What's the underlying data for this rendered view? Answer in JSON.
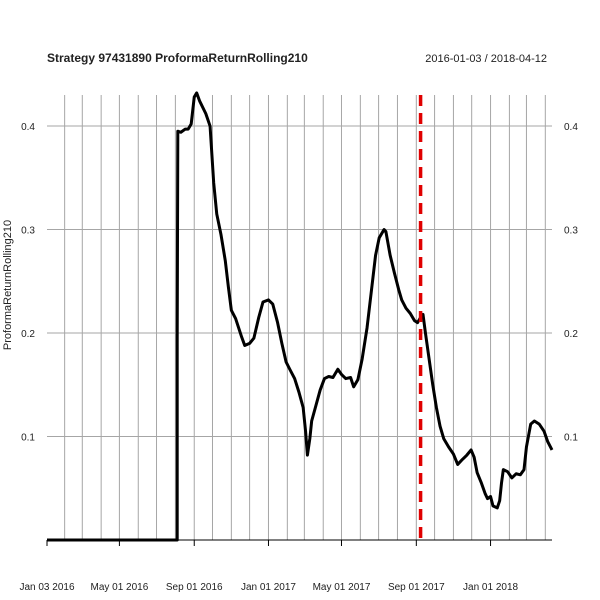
{
  "chart_data": {
    "type": "line",
    "title": "Strategy 97431890 ProformaReturnRolling210",
    "date_range": "2016-01-03 / 2018-04-12",
    "ylabel": "ProformaReturnRolling210",
    "xlabel": "",
    "x_range": [
      "2016-01-03",
      "2018-04-12"
    ],
    "ylim": [
      0.0,
      0.43
    ],
    "y_ticks": [
      0.1,
      0.2,
      0.3,
      0.4
    ],
    "y_tick_labels": [
      "0.1",
      "0.2",
      "0.3",
      "0.4"
    ],
    "x_tick_labels": [
      {
        "label": "Jan 03 2016",
        "date": "2016-01-03"
      },
      {
        "label": "May 01 2016",
        "date": "2016-05-01"
      },
      {
        "label": "Sep 01 2016",
        "date": "2016-09-01"
      },
      {
        "label": "Jan 01 2017",
        "date": "2017-01-01"
      },
      {
        "label": "May 01 2017",
        "date": "2017-05-01"
      },
      {
        "label": "Sep 01 2017",
        "date": "2017-09-01"
      },
      {
        "label": "Jan 01 2018",
        "date": "2018-01-01"
      }
    ],
    "grid": true,
    "line_color": "#000000",
    "marker_line": {
      "date": "2017-09-08",
      "color": "#e00000",
      "style": "dashed"
    },
    "series": [
      {
        "points": [
          [
            "2016-01-03",
            0.0
          ],
          [
            "2016-08-04",
            0.0
          ],
          [
            "2016-08-04",
            0.195
          ],
          [
            "2016-08-05",
            0.395
          ],
          [
            "2016-08-10",
            0.394
          ],
          [
            "2016-08-17",
            0.397
          ],
          [
            "2016-08-22",
            0.397
          ],
          [
            "2016-08-27",
            0.402
          ],
          [
            "2016-09-01",
            0.428
          ],
          [
            "2016-09-05",
            0.432
          ],
          [
            "2016-09-10",
            0.424
          ],
          [
            "2016-09-20",
            0.412
          ],
          [
            "2016-09-27",
            0.4
          ],
          [
            "2016-10-03",
            0.345
          ],
          [
            "2016-10-08",
            0.315
          ],
          [
            "2016-10-15",
            0.295
          ],
          [
            "2016-10-22",
            0.27
          ],
          [
            "2016-10-27",
            0.245
          ],
          [
            "2016-11-01",
            0.222
          ],
          [
            "2016-11-08",
            0.214
          ],
          [
            "2016-11-18",
            0.196
          ],
          [
            "2016-11-23",
            0.188
          ],
          [
            "2016-12-01",
            0.19
          ],
          [
            "2016-12-08",
            0.195
          ],
          [
            "2016-12-16",
            0.215
          ],
          [
            "2016-12-23",
            0.23
          ],
          [
            "2017-01-01",
            0.232
          ],
          [
            "2017-01-08",
            0.228
          ],
          [
            "2017-01-16",
            0.21
          ],
          [
            "2017-01-23",
            0.19
          ],
          [
            "2017-01-30",
            0.172
          ],
          [
            "2017-02-05",
            0.165
          ],
          [
            "2017-02-13",
            0.156
          ],
          [
            "2017-02-20",
            0.143
          ],
          [
            "2017-02-27",
            0.128
          ],
          [
            "2017-03-03",
            0.105
          ],
          [
            "2017-03-06",
            0.082
          ],
          [
            "2017-03-10",
            0.098
          ],
          [
            "2017-03-13",
            0.115
          ],
          [
            "2017-03-20",
            0.13
          ],
          [
            "2017-03-27",
            0.145
          ],
          [
            "2017-04-03",
            0.156
          ],
          [
            "2017-04-10",
            0.158
          ],
          [
            "2017-04-17",
            0.157
          ],
          [
            "2017-04-25",
            0.165
          ],
          [
            "2017-05-01",
            0.16
          ],
          [
            "2017-05-08",
            0.156
          ],
          [
            "2017-05-16",
            0.157
          ],
          [
            "2017-05-21",
            0.148
          ],
          [
            "2017-05-28",
            0.155
          ],
          [
            "2017-06-04",
            0.175
          ],
          [
            "2017-06-12",
            0.205
          ],
          [
            "2017-06-19",
            0.24
          ],
          [
            "2017-06-26",
            0.275
          ],
          [
            "2017-07-02",
            0.292
          ],
          [
            "2017-07-10",
            0.3
          ],
          [
            "2017-07-13",
            0.298
          ],
          [
            "2017-07-20",
            0.275
          ],
          [
            "2017-07-27",
            0.258
          ],
          [
            "2017-08-03",
            0.242
          ],
          [
            "2017-08-08",
            0.232
          ],
          [
            "2017-08-15",
            0.224
          ],
          [
            "2017-08-22",
            0.219
          ],
          [
            "2017-08-29",
            0.212
          ],
          [
            "2017-09-03",
            0.21
          ],
          [
            "2017-09-08",
            0.215
          ],
          [
            "2017-09-12",
            0.218
          ],
          [
            "2017-09-16",
            0.2
          ],
          [
            "2017-09-22",
            0.175
          ],
          [
            "2017-09-28",
            0.15
          ],
          [
            "2017-10-04",
            0.128
          ],
          [
            "2017-10-10",
            0.11
          ],
          [
            "2017-10-16",
            0.098
          ],
          [
            "2017-10-24",
            0.09
          ],
          [
            "2017-11-01",
            0.083
          ],
          [
            "2017-11-08",
            0.073
          ],
          [
            "2017-11-16",
            0.078
          ],
          [
            "2017-11-23",
            0.082
          ],
          [
            "2017-11-30",
            0.087
          ],
          [
            "2017-12-05",
            0.08
          ],
          [
            "2017-12-10",
            0.065
          ],
          [
            "2017-12-17",
            0.055
          ],
          [
            "2017-12-23",
            0.045
          ],
          [
            "2017-12-27",
            0.04
          ],
          [
            "2018-01-01",
            0.042
          ],
          [
            "2018-01-05",
            0.033
          ],
          [
            "2018-01-12",
            0.031
          ],
          [
            "2018-01-16",
            0.038
          ],
          [
            "2018-01-19",
            0.055
          ],
          [
            "2018-01-22",
            0.068
          ],
          [
            "2018-01-29",
            0.066
          ],
          [
            "2018-02-05",
            0.06
          ],
          [
            "2018-02-12",
            0.064
          ],
          [
            "2018-02-19",
            0.063
          ],
          [
            "2018-02-25",
            0.068
          ],
          [
            "2018-03-01",
            0.09
          ],
          [
            "2018-03-08",
            0.112
          ],
          [
            "2018-03-14",
            0.115
          ],
          [
            "2018-03-22",
            0.112
          ],
          [
            "2018-03-30",
            0.105
          ],
          [
            "2018-04-05",
            0.095
          ],
          [
            "2018-04-12",
            0.087
          ]
        ]
      }
    ]
  }
}
